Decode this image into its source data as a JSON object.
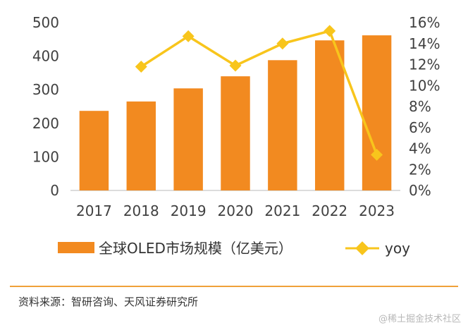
{
  "chart_data": {
    "type": "bar+line",
    "categories": [
      "2017",
      "2018",
      "2019",
      "2020",
      "2021",
      "2022",
      "2023"
    ],
    "series": [
      {
        "name": "全球OLED市场规模（亿美元）",
        "type": "bar",
        "axis": "left",
        "color": "#f28a20",
        "values": [
          237,
          265,
          304,
          340,
          388,
          447,
          462
        ]
      },
      {
        "name": "yoy",
        "type": "line",
        "axis": "right",
        "color": "#f8c51c",
        "values": [
          null,
          11.8,
          14.7,
          11.9,
          14.0,
          15.2,
          3.4
        ]
      }
    ],
    "y_left": {
      "min": 0,
      "max": 500,
      "ticks": [
        "0",
        "100",
        "200",
        "300",
        "400",
        "500"
      ]
    },
    "y_right": {
      "min": 0,
      "max": 16,
      "ticks": [
        "0%",
        "2%",
        "4%",
        "6%",
        "8%",
        "10%",
        "12%",
        "14%",
        "16%"
      ]
    },
    "grid": false,
    "legend_position": "bottom"
  },
  "source_text": "资料来源：智研咨询、天风证券研究所",
  "watermark": "@稀土掘金技术社区"
}
